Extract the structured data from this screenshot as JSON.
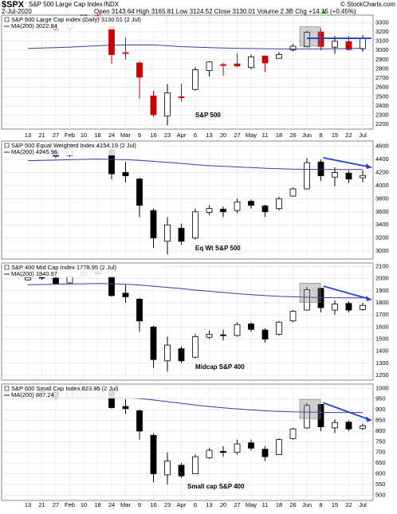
{
  "header": {
    "symbol": "$SPX",
    "name": "S&P 500 Large Cap Index",
    "exchange": "INDX",
    "date": "2-Jul-2020",
    "quote": "Open 3143.64  High 3165.81  Low 3124.52  Close 3130.01  Volume 2.3B  Chg +14.15 (+0.45%)",
    "copyright": "© StockCharts.com"
  },
  "chart_data": [
    {
      "type": "candlestick",
      "annotation": "S&P 500",
      "down_color": "#cc0000",
      "categories": [
        "13",
        "21",
        "27",
        "Feb",
        "10",
        "18",
        "24",
        "Mar",
        "9",
        "16",
        "23",
        "Apr",
        "6",
        "13",
        "20",
        "27",
        "May",
        "11",
        "18",
        "26",
        "Jun",
        "8",
        "15",
        "22",
        "Jul"
      ],
      "series": [
        {
          "name": "S&P 500 Large Cap Index (Daily) 3130.01 (2 Jul)",
          "open": [
            3274,
            3321,
            3247,
            3235,
            3318,
            3370,
            3257,
            2975,
            2864,
            2508,
            2290,
            2498,
            2578,
            2782,
            2846,
            2854,
            2815,
            2939,
            2914,
            3004,
            3038,
            3199,
            3034,
            3094,
            3018
          ],
          "high": [
            3329,
            3337,
            3285,
            3337,
            3385,
            3393,
            3259,
            3137,
            2882,
            2562,
            2637,
            2641,
            2818,
            2880,
            2869,
            2965,
            2955,
            2945,
            2981,
            3068,
            3211,
            3233,
            3155,
            3155,
            3165
          ],
          "low": [
            3270,
            3281,
            3214,
            3223,
            3316,
            3328,
            2855,
            2901,
            2478,
            2281,
            2192,
            2448,
            2566,
            2718,
            2727,
            2820,
            2797,
            2766,
            2913,
            2988,
            3032,
            2999,
            2965,
            2999,
            2985
          ],
          "close": [
            3329,
            3295,
            3226,
            3328,
            3380,
            3338,
            2954,
            2972,
            2711,
            2305,
            2541,
            2489,
            2790,
            2875,
            2837,
            2831,
            2930,
            2864,
            2955,
            3044,
            3194,
            3041,
            3098,
            3009,
            3130
          ]
        },
        {
          "name": "MA(200) 3022.84",
          "color": "#3a3aaa",
          "values": [
            3020,
            3025,
            3030,
            3035,
            3042,
            3050,
            3055,
            3058,
            3060,
            3058,
            3050,
            3040,
            3035,
            3030,
            3025,
            3022,
            3020,
            3018,
            3015,
            3015,
            3015,
            3015,
            3018,
            3020,
            3022
          ]
        }
      ],
      "ylim": [
        2150,
        3380
      ],
      "yticks": [
        2200,
        2300,
        2400,
        2500,
        2600,
        2700,
        2800,
        2900,
        3000,
        3100,
        3200,
        3300
      ]
    },
    {
      "type": "candlestick",
      "annotation": "Eq Wt S&P 500",
      "down_color": "#000000",
      "series": [
        {
          "name": "S&P 500 Equal Weighted Index 4154.19 (2 Jul)",
          "open": [
            4480,
            4525,
            4520,
            4460,
            4565,
            4600,
            4550,
            4200,
            4100,
            3620,
            3150,
            3350,
            3200,
            3590,
            3640,
            3620,
            3760,
            3690,
            3650,
            3840,
            3950,
            4360,
            4130,
            4190,
            4120
          ],
          "high": [
            4540,
            4560,
            4530,
            4570,
            4620,
            4620,
            4560,
            4360,
            4120,
            3650,
            3520,
            3420,
            3650,
            3700,
            3680,
            3800,
            3790,
            3710,
            3830,
            3970,
            4420,
            4400,
            4280,
            4230,
            4230
          ],
          "low": [
            4470,
            4490,
            4420,
            4440,
            4550,
            4570,
            4100,
            4050,
            3520,
            3050,
            2950,
            3100,
            3180,
            3550,
            3520,
            3580,
            3650,
            3520,
            3620,
            3830,
            3940,
            4070,
            3990,
            4040,
            4050
          ],
          "close": [
            4520,
            4530,
            4450,
            4560,
            4600,
            4590,
            4180,
            4150,
            3700,
            3200,
            3400,
            3150,
            3600,
            3650,
            3600,
            3750,
            3700,
            3600,
            3800,
            3950,
            4350,
            4150,
            4200,
            4100,
            4154
          ]
        },
        {
          "name": "MA(200) 4245.96",
          "color": "#3a3aaa",
          "values": [
            4380,
            4385,
            4390,
            4395,
            4400,
            4405,
            4400,
            4395,
            4385,
            4370,
            4355,
            4340,
            4320,
            4305,
            4295,
            4285,
            4275,
            4265,
            4258,
            4252,
            4248,
            4246,
            4245,
            4245,
            4246
          ]
        }
      ],
      "ylim": [
        2880,
        4680
      ],
      "yticks": [
        3000,
        3200,
        3400,
        3600,
        3800,
        4000,
        4200,
        4400,
        4600
      ]
    },
    {
      "type": "candlestick",
      "annotation": "Midcap S&P 400",
      "down_color": "#000000",
      "series": [
        {
          "name": "S&P 400 Mid Cap Index 1778.95 (2 Jul)",
          "open": [
            1990,
            2012,
            2005,
            1965,
            2025,
            2050,
            2020,
            1880,
            1830,
            1600,
            1320,
            1420,
            1350,
            1515,
            1535,
            1530,
            1625,
            1575,
            1540,
            1650,
            1740,
            1920,
            1740,
            1795,
            1745
          ],
          "high": [
            2020,
            2030,
            2010,
            2025,
            2060,
            2060,
            2025,
            1950,
            1840,
            1610,
            1520,
            1440,
            1540,
            1570,
            1580,
            1640,
            1640,
            1590,
            1650,
            1740,
            1930,
            1925,
            1820,
            1810,
            1800
          ],
          "low": [
            1985,
            1990,
            1950,
            1955,
            2015,
            2030,
            1850,
            1800,
            1560,
            1260,
            1230,
            1300,
            1340,
            1500,
            1490,
            1520,
            1560,
            1470,
            1530,
            1640,
            1735,
            1720,
            1700,
            1720,
            1735
          ],
          "close": [
            2010,
            2010,
            1960,
            2020,
            2050,
            2040,
            1860,
            1850,
            1650,
            1330,
            1450,
            1320,
            1520,
            1540,
            1530,
            1620,
            1580,
            1500,
            1640,
            1730,
            1910,
            1760,
            1790,
            1740,
            1779
          ]
        },
        {
          "name": "MA(200) 1840.97",
          "color": "#3a3aaa",
          "values": [
            1950,
            1952,
            1954,
            1956,
            1958,
            1960,
            1958,
            1954,
            1948,
            1938,
            1928,
            1918,
            1906,
            1896,
            1886,
            1876,
            1868,
            1860,
            1854,
            1850,
            1846,
            1844,
            1842,
            1841,
            1841
          ]
        }
      ],
      "ylim": [
        1160,
        2130
      ],
      "yticks": [
        1200,
        1300,
        1400,
        1500,
        1600,
        1700,
        1800,
        1900,
        2000,
        2100
      ]
    },
    {
      "type": "candlestick",
      "annotation": "Small cap S&P 400",
      "down_color": "#000000",
      "categories": [
        "13",
        "21",
        "27",
        "Feb",
        "10",
        "18",
        "24",
        "Mar",
        "9",
        "16",
        "23",
        "Apr",
        "6",
        "13",
        "20",
        "27",
        "May",
        "11",
        "18",
        "26",
        "Jun",
        "8",
        "15",
        "22",
        "Jul"
      ],
      "series": [
        {
          "name": "S&P 600 Small Cap Index 823.95 (2 Jul)",
          "open": [
            980,
            990,
            985,
            958,
            992,
            1000,
            990,
            915,
            895,
            780,
            595,
            640,
            600,
            675,
            705,
            700,
            745,
            715,
            690,
            765,
            815,
            925,
            815,
            842,
            812
          ],
          "high": [
            995,
            1000,
            990,
            995,
            1010,
            1010,
            992,
            950,
            900,
            790,
            700,
            650,
            690,
            720,
            730,
            760,
            760,
            730,
            765,
            815,
            930,
            925,
            855,
            850,
            835
          ],
          "low": [
            975,
            980,
            950,
            955,
            985,
            990,
            905,
            880,
            760,
            560,
            550,
            580,
            600,
            670,
            680,
            690,
            710,
            660,
            690,
            760,
            810,
            800,
            790,
            800,
            805
          ],
          "close": [
            990,
            985,
            955,
            990,
            1000,
            995,
            910,
            905,
            800,
            600,
            660,
            590,
            680,
            710,
            700,
            740,
            720,
            680,
            760,
            810,
            920,
            820,
            840,
            810,
            824
          ]
        },
        {
          "name": "MA(200) 887.24",
          "color": "#3a3aaa",
          "values": [
            955,
            956,
            957,
            958,
            959,
            960,
            959,
            957,
            953,
            946,
            938,
            930,
            922,
            915,
            909,
            904,
            899,
            895,
            892,
            890,
            889,
            888,
            887,
            887,
            887
          ]
        }
      ],
      "ylim": [
        475,
        1020
      ],
      "yticks": [
        500,
        550,
        600,
        650,
        700,
        750,
        800,
        850,
        900,
        950,
        1000
      ]
    }
  ]
}
